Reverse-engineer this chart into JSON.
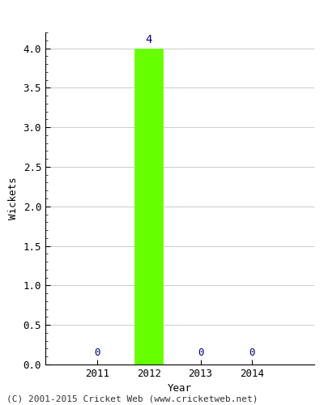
{
  "years": [
    2011,
    2012,
    2013,
    2014
  ],
  "values": [
    0,
    4,
    0,
    0
  ],
  "bar_color": "#66ff00",
  "zero_label_color": "#000080",
  "annotation_color": "#000080",
  "xlabel": "Year",
  "ylabel": "Wickets",
  "ylim": [
    0,
    4.2
  ],
  "yticks": [
    0.0,
    0.5,
    1.0,
    1.5,
    2.0,
    2.5,
    3.0,
    3.5,
    4.0
  ],
  "bar_width": 0.55,
  "annotation_fontsize": 10,
  "zero_label_fontsize": 9,
  "copyright_text": "(C) 2001-2015 Cricket Web (www.cricketweb.net)",
  "copyright_fontsize": 8,
  "axis_label_fontsize": 9,
  "tick_fontsize": 9,
  "background_color": "#ffffff",
  "grid_color": "#cccccc",
  "xlim": [
    2010.0,
    2015.2
  ]
}
